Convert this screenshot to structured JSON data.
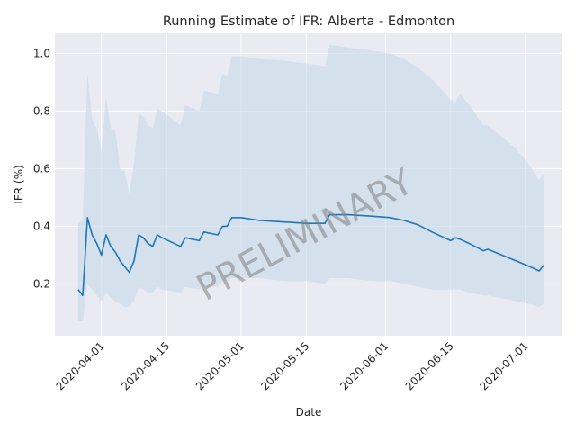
{
  "chart_data": {
    "type": "line",
    "title": "Running Estimate of IFR: Alberta - Edmonton",
    "xlabel": "Date",
    "ylabel": "IFR (%)",
    "watermark": "PRELIMINARY",
    "grid": true,
    "xlim": [
      "2020-03-22",
      "2020-07-09"
    ],
    "ylim": [
      0.02,
      1.07
    ],
    "x_ticks": [
      "2020-04-01",
      "2020-04-15",
      "2020-05-01",
      "2020-05-15",
      "2020-06-01",
      "2020-06-15",
      "2020-07-01"
    ],
    "y_ticks": [
      0.2,
      0.4,
      0.6,
      0.8,
      1.0
    ],
    "y_tick_labels": [
      "0.2",
      "0.4",
      "0.6",
      "0.8",
      "1.0"
    ],
    "colors": {
      "line": "#1f77b4",
      "band": "#c6d9ea",
      "background": "#eaeaf2",
      "grid": "#ffffff"
    },
    "series": [
      {
        "x": [
          "2020-03-27",
          "2020-03-28",
          "2020-03-29",
          "2020-03-30",
          "2020-03-31",
          "2020-04-01",
          "2020-04-02",
          "2020-04-03",
          "2020-04-04",
          "2020-04-05",
          "2020-04-06",
          "2020-04-07",
          "2020-04-08",
          "2020-04-09",
          "2020-04-10",
          "2020-04-11",
          "2020-04-12",
          "2020-04-13",
          "2020-04-14",
          "2020-04-18",
          "2020-04-19",
          "2020-04-22",
          "2020-04-23",
          "2020-04-26",
          "2020-04-27",
          "2020-04-28",
          "2020-04-29",
          "2020-05-01",
          "2020-05-05",
          "2020-05-10",
          "2020-05-15",
          "2020-05-19",
          "2020-05-20",
          "2020-05-24",
          "2020-05-29",
          "2020-06-02",
          "2020-06-05",
          "2020-06-08",
          "2020-06-11",
          "2020-06-15",
          "2020-06-16",
          "2020-06-17",
          "2020-06-19",
          "2020-06-22",
          "2020-06-23",
          "2020-06-26",
          "2020-06-29",
          "2020-07-02",
          "2020-07-04",
          "2020-07-05"
        ],
        "y": [
          0.18,
          0.16,
          0.43,
          0.37,
          0.34,
          0.3,
          0.37,
          0.33,
          0.31,
          0.28,
          0.26,
          0.24,
          0.28,
          0.37,
          0.36,
          0.34,
          0.33,
          0.37,
          0.36,
          0.33,
          0.36,
          0.35,
          0.38,
          0.37,
          0.4,
          0.4,
          0.43,
          0.43,
          0.42,
          0.415,
          0.41,
          0.41,
          0.44,
          0.44,
          0.435,
          0.43,
          0.42,
          0.405,
          0.38,
          0.35,
          0.36,
          0.355,
          0.34,
          0.315,
          0.32,
          0.3,
          0.28,
          0.26,
          0.245,
          0.265
        ],
        "lower": [
          0.07,
          0.07,
          0.2,
          0.18,
          0.16,
          0.14,
          0.17,
          0.15,
          0.14,
          0.13,
          0.12,
          0.12,
          0.14,
          0.19,
          0.18,
          0.17,
          0.17,
          0.19,
          0.18,
          0.17,
          0.19,
          0.18,
          0.19,
          0.19,
          0.21,
          0.21,
          0.22,
          0.22,
          0.22,
          0.21,
          0.21,
          0.2,
          0.22,
          0.22,
          0.21,
          0.21,
          0.2,
          0.19,
          0.18,
          0.18,
          0.18,
          0.18,
          0.17,
          0.16,
          0.16,
          0.15,
          0.14,
          0.13,
          0.12,
          0.13
        ],
        "upper": [
          0.41,
          0.42,
          0.93,
          0.77,
          0.74,
          0.66,
          0.85,
          0.74,
          0.73,
          0.6,
          0.59,
          0.51,
          0.62,
          0.79,
          0.78,
          0.75,
          0.74,
          0.81,
          0.8,
          0.75,
          0.82,
          0.8,
          0.87,
          0.86,
          0.93,
          0.92,
          0.99,
          0.99,
          0.98,
          0.975,
          0.965,
          0.955,
          1.03,
          1.02,
          1.01,
          1.0,
          0.98,
          0.95,
          0.91,
          0.84,
          0.83,
          0.86,
          0.82,
          0.75,
          0.75,
          0.71,
          0.67,
          0.61,
          0.56,
          0.58
        ]
      }
    ]
  }
}
